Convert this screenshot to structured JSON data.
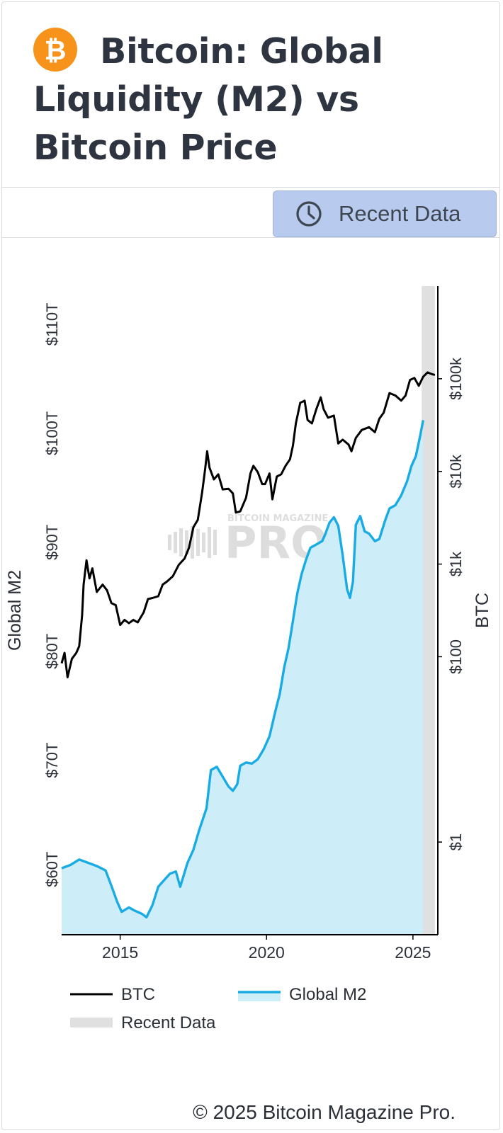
{
  "header": {
    "title": "Bitcoin: Global Liquidity (M2) vs Bitcoin Price",
    "logo_icon": "bitcoin-icon",
    "logo_color": "#F7931A"
  },
  "toolbar": {
    "recent_button_label": "Recent Data",
    "recent_button_icon": "clock-icon",
    "recent_button_color": "#B8CAED"
  },
  "watermark": {
    "top": "BITCOIN MAGAZINE",
    "main": "PRO"
  },
  "footer": {
    "copyright": "© 2025 Bitcoin Magazine Pro."
  },
  "chart_data": {
    "type": "line",
    "title": "Bitcoin: Global Liquidity (M2) vs Bitcoin Price",
    "x_ticks": [
      2015,
      2020,
      2025
    ],
    "xlim": [
      2013.0,
      2025.85
    ],
    "y_left": {
      "label": "Global M2",
      "ticks": [
        60,
        70,
        80,
        90,
        100,
        110
      ],
      "tick_labels": [
        "$60T",
        "$70T",
        "$80T",
        "$90T",
        "$100T",
        "$110T"
      ],
      "range": [
        54,
        113.5
      ]
    },
    "y_right": {
      "label": "BTC",
      "scale": "log",
      "ticks": [
        1,
        100,
        1000,
        10000,
        100000
      ],
      "tick_labels": [
        "$1",
        "$100",
        "$1k",
        "$10k",
        "$100k"
      ],
      "range": [
        0.1,
        1000000
      ]
    },
    "recent_data_band": [
      2025.3,
      2025.75
    ],
    "colors": {
      "btc": "#000000",
      "m2_line": "#19ABE4",
      "m2_fill": "#CDEEF9",
      "recent": "#E0E0E0"
    },
    "legend": [
      {
        "name": "BTC",
        "color": "#000000"
      },
      {
        "name": "Global M2",
        "color": "#19ABE4"
      },
      {
        "name": "Recent Data",
        "color": "#E0E0E0"
      }
    ],
    "series": [
      {
        "name": "Global M2",
        "axis": "left",
        "unit": "trillion USD",
        "points": [
          [
            2013.0,
            60.1
          ],
          [
            2013.3,
            60.4
          ],
          [
            2013.6,
            60.9
          ],
          [
            2013.9,
            60.6
          ],
          [
            2014.2,
            60.3
          ],
          [
            2014.5,
            59.9
          ],
          [
            2014.7,
            58.5
          ],
          [
            2014.9,
            57.0
          ],
          [
            2015.05,
            56.1
          ],
          [
            2015.3,
            56.5
          ],
          [
            2015.5,
            56.2
          ],
          [
            2015.75,
            55.9
          ],
          [
            2015.9,
            55.6
          ],
          [
            2016.1,
            56.7
          ],
          [
            2016.3,
            58.4
          ],
          [
            2016.5,
            59.0
          ],
          [
            2016.7,
            59.6
          ],
          [
            2016.9,
            59.8
          ],
          [
            2017.05,
            58.4
          ],
          [
            2017.3,
            60.6
          ],
          [
            2017.5,
            61.8
          ],
          [
            2017.7,
            63.6
          ],
          [
            2017.95,
            65.6
          ],
          [
            2018.1,
            69.1
          ],
          [
            2018.3,
            69.4
          ],
          [
            2018.5,
            68.5
          ],
          [
            2018.7,
            67.6
          ],
          [
            2018.85,
            67.2
          ],
          [
            2019.0,
            67.8
          ],
          [
            2019.1,
            69.5
          ],
          [
            2019.3,
            69.8
          ],
          [
            2019.5,
            69.7
          ],
          [
            2019.7,
            70.1
          ],
          [
            2019.9,
            71.0
          ],
          [
            2020.1,
            72.2
          ],
          [
            2020.3,
            74.5
          ],
          [
            2020.45,
            76.1
          ],
          [
            2020.6,
            78.5
          ],
          [
            2020.75,
            80.3
          ],
          [
            2020.9,
            82.8
          ],
          [
            2021.05,
            85.3
          ],
          [
            2021.2,
            87.1
          ],
          [
            2021.35,
            88.4
          ],
          [
            2021.5,
            89.5
          ],
          [
            2021.7,
            89.8
          ],
          [
            2021.9,
            90.1
          ],
          [
            2022.0,
            90.7
          ],
          [
            2022.15,
            91.8
          ],
          [
            2022.3,
            92.3
          ],
          [
            2022.45,
            91.5
          ],
          [
            2022.6,
            88.8
          ],
          [
            2022.75,
            85.7
          ],
          [
            2022.85,
            84.9
          ],
          [
            2022.95,
            86.4
          ],
          [
            2023.05,
            91.6
          ],
          [
            2023.2,
            92.4
          ],
          [
            2023.35,
            91.0
          ],
          [
            2023.5,
            90.8
          ],
          [
            2023.7,
            90.1
          ],
          [
            2023.85,
            90.3
          ],
          [
            2024.05,
            92.0
          ],
          [
            2024.2,
            93.1
          ],
          [
            2024.4,
            93.4
          ],
          [
            2024.6,
            94.3
          ],
          [
            2024.8,
            95.6
          ],
          [
            2024.95,
            97.0
          ],
          [
            2025.1,
            97.9
          ],
          [
            2025.25,
            99.8
          ],
          [
            2025.35,
            101.2
          ]
        ]
      },
      {
        "name": "BTC",
        "axis": "right",
        "unit": "USD",
        "points": [
          [
            2013.0,
            85
          ],
          [
            2013.1,
            110
          ],
          [
            2013.2,
            60
          ],
          [
            2013.35,
            95
          ],
          [
            2013.5,
            110
          ],
          [
            2013.6,
            130
          ],
          [
            2013.7,
            280
          ],
          [
            2013.75,
            600
          ],
          [
            2013.85,
            1100
          ],
          [
            2013.95,
            700
          ],
          [
            2014.05,
            900
          ],
          [
            2014.2,
            500
          ],
          [
            2014.4,
            600
          ],
          [
            2014.55,
            520
          ],
          [
            2014.7,
            380
          ],
          [
            2014.85,
            360
          ],
          [
            2015.0,
            220
          ],
          [
            2015.15,
            250
          ],
          [
            2015.3,
            230
          ],
          [
            2015.45,
            250
          ],
          [
            2015.6,
            235
          ],
          [
            2015.8,
            300
          ],
          [
            2015.95,
            420
          ],
          [
            2016.1,
            430
          ],
          [
            2016.3,
            450
          ],
          [
            2016.45,
            600
          ],
          [
            2016.6,
            650
          ],
          [
            2016.8,
            740
          ],
          [
            2017.0,
            980
          ],
          [
            2017.2,
            1150
          ],
          [
            2017.35,
            1500
          ],
          [
            2017.5,
            2500
          ],
          [
            2017.65,
            3000
          ],
          [
            2017.8,
            6000
          ],
          [
            2017.9,
            10500
          ],
          [
            2017.97,
            16500
          ],
          [
            2018.05,
            11000
          ],
          [
            2018.2,
            8200
          ],
          [
            2018.35,
            9300
          ],
          [
            2018.5,
            6400
          ],
          [
            2018.7,
            6500
          ],
          [
            2018.85,
            5800
          ],
          [
            2018.95,
            3600
          ],
          [
            2019.1,
            3700
          ],
          [
            2019.3,
            5200
          ],
          [
            2019.45,
            9500
          ],
          [
            2019.55,
            11500
          ],
          [
            2019.7,
            9800
          ],
          [
            2019.85,
            7300
          ],
          [
            2019.95,
            7300
          ],
          [
            2020.1,
            9500
          ],
          [
            2020.2,
            5000
          ],
          [
            2020.35,
            8800
          ],
          [
            2020.5,
            9300
          ],
          [
            2020.65,
            11500
          ],
          [
            2020.8,
            13500
          ],
          [
            2020.9,
            19000
          ],
          [
            2021.0,
            33000
          ],
          [
            2021.15,
            55000
          ],
          [
            2021.3,
            58000
          ],
          [
            2021.4,
            36000
          ],
          [
            2021.55,
            33000
          ],
          [
            2021.7,
            47000
          ],
          [
            2021.85,
            63000
          ],
          [
            2021.95,
            47000
          ],
          [
            2022.1,
            38000
          ],
          [
            2022.3,
            40000
          ],
          [
            2022.45,
            20000
          ],
          [
            2022.6,
            22000
          ],
          [
            2022.8,
            19500
          ],
          [
            2022.9,
            16500
          ],
          [
            2023.05,
            23000
          ],
          [
            2023.25,
            28000
          ],
          [
            2023.5,
            30000
          ],
          [
            2023.7,
            26500
          ],
          [
            2023.85,
            37000
          ],
          [
            2024.0,
            43000
          ],
          [
            2024.2,
            70000
          ],
          [
            2024.4,
            66000
          ],
          [
            2024.6,
            58000
          ],
          [
            2024.75,
            66000
          ],
          [
            2024.9,
            97000
          ],
          [
            2025.05,
            102000
          ],
          [
            2025.2,
            84000
          ],
          [
            2025.35,
            105000
          ],
          [
            2025.5,
            117000
          ],
          [
            2025.65,
            112000
          ],
          [
            2025.75,
            110000
          ]
        ]
      }
    ]
  }
}
